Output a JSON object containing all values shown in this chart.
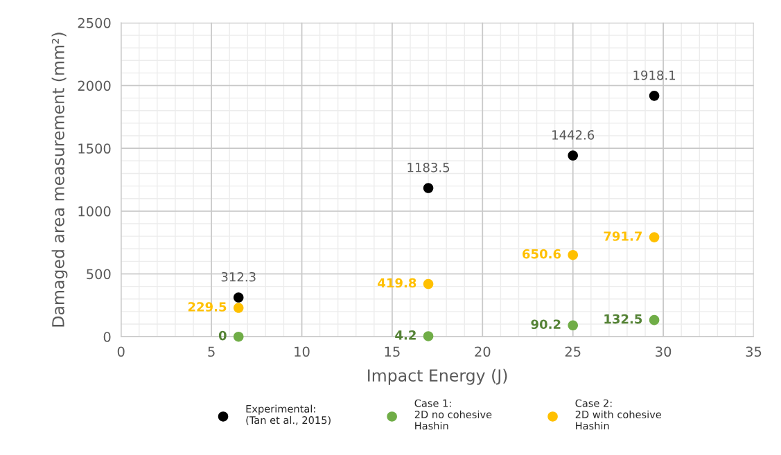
{
  "chart_data": {
    "type": "scatter",
    "xlabel": "Impact Energy (J)",
    "ylabel": "Damaged area measurement (mm²)",
    "x": [
      6.5,
      17,
      25,
      29.5
    ],
    "series": [
      {
        "name": "Experimental:\n(Tan et al., 2015)",
        "color": "#000000",
        "values": [
          312.3,
          1183.5,
          1442.6,
          1918.1
        ]
      },
      {
        "name": "Case 1:\n2D no cohesive\nHashin",
        "color": "#70ad47",
        "values": [
          0,
          4.2,
          90.2,
          132.5
        ]
      },
      {
        "name": "Case 2:\n2D with cohesive\nHashin",
        "color": "#ffc000",
        "values": [
          229.5,
          419.8,
          650.6,
          791.7
        ]
      }
    ],
    "xlim": [
      0,
      35
    ],
    "xticks": [
      0,
      5,
      10,
      15,
      20,
      25,
      30,
      35
    ],
    "ylim": [
      0,
      2500
    ],
    "yticks": [
      0,
      500,
      1000,
      1500,
      2000,
      2500
    ],
    "grid": true,
    "legend": "bottom",
    "marker": "circle",
    "data_labels": true
  }
}
